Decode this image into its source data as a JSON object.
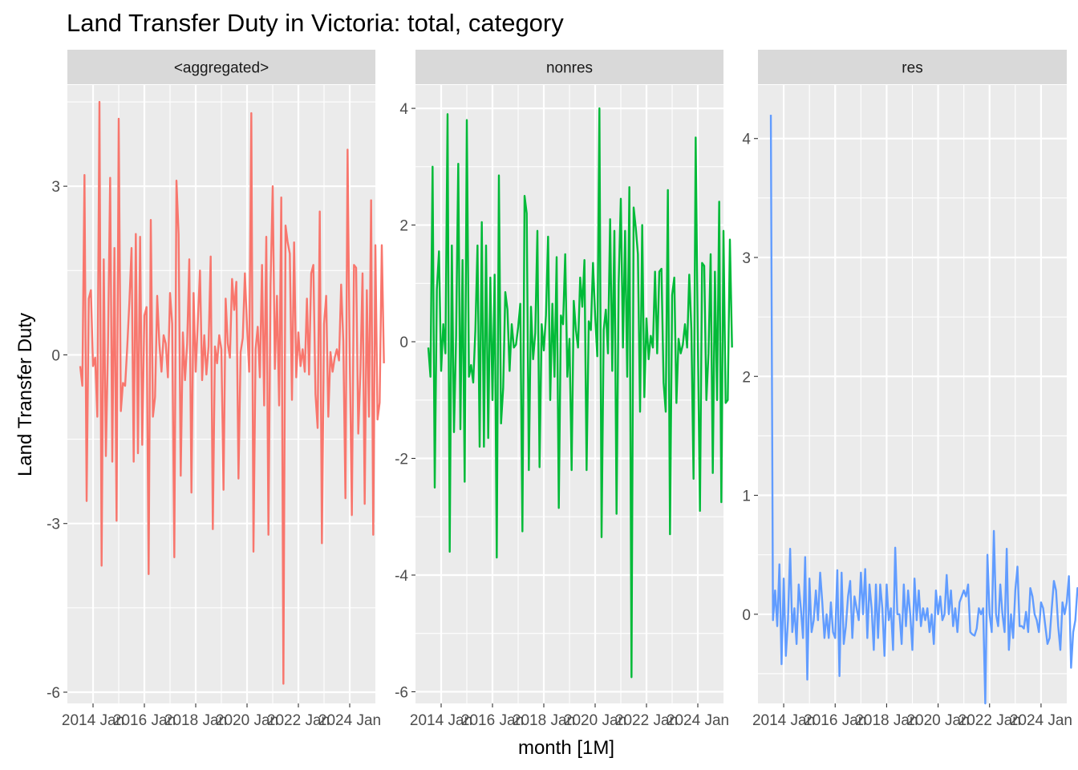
{
  "title": "Land Transfer Duty in Victoria: total, category",
  "xlabel": "month [1M]",
  "ylabel": "Land Transfer Duty",
  "chart_data": {
    "type": "line",
    "title": "Land Transfer Duty in Victoria: total, category",
    "xlabel": "month [1M]",
    "ylabel": "Land Transfer Duty",
    "grid": true,
    "legend": "none",
    "x_start": "2013 Jul",
    "x_frequency": "monthly",
    "x_ticks": [
      "2014 Jan",
      "2016 Jan",
      "2018 Jan",
      "2020 Jan",
      "2022 Jan",
      "2024 Jan"
    ],
    "facets": [
      {
        "name": "<aggregated>",
        "color": "#F8766D",
        "xlim": [
          "2013 Jan",
          "2025 Jan"
        ],
        "ylim": [
          -6.2,
          4.8
        ],
        "yticks": [
          -6,
          -3,
          0,
          3
        ],
        "yticklabels": [
          "-6",
          "-3",
          "0",
          "3"
        ],
        "values": [
          -0.2,
          -0.55,
          3.2,
          -2.6,
          1.0,
          1.15,
          -0.2,
          -0.05,
          -1.1,
          4.5,
          -3.75,
          1.7,
          -1.8,
          0.2,
          3.15,
          -1.9,
          1.9,
          -2.95,
          4.2,
          -1.0,
          -0.5,
          -0.55,
          0.15,
          0.95,
          1.9,
          -1.9,
          2.15,
          -1.75,
          2.1,
          -1.6,
          0.7,
          0.85,
          -3.9,
          2.4,
          -1.1,
          -0.75,
          1.05,
          0.2,
          -0.3,
          0.35,
          0.2,
          -0.4,
          1.1,
          0.55,
          -3.6,
          3.1,
          2.15,
          -2.15,
          0.4,
          -0.45,
          0.2,
          1.7,
          -2.45,
          1.1,
          -0.3,
          0.6,
          1.5,
          -0.45,
          0.35,
          -0.35,
          0.15,
          1.75,
          -3.1,
          0.15,
          -0.15,
          0.35,
          0.1,
          -2.4,
          1.0,
          0.2,
          -0.05,
          1.35,
          0.8,
          1.3,
          -2.2,
          0.05,
          0.3,
          1.45,
          0.5,
          -0.3,
          4.3,
          -3.5,
          0.1,
          0.5,
          -0.4,
          1.6,
          -0.9,
          2.1,
          -3.2,
          1.25,
          3.0,
          -0.25,
          1.05,
          -0.9,
          2.8,
          -5.85,
          2.3,
          2.0,
          1.8,
          -0.8,
          2.0,
          -0.4,
          0.4,
          -0.2,
          0.1,
          -0.3,
          1.0,
          -0.35,
          1.45,
          1.6,
          -0.7,
          -1.3,
          2.55,
          -3.35,
          0.55,
          1.05,
          -1.1,
          0.05,
          -0.3,
          -0.05,
          0.1,
          -0.1,
          1.25,
          0.25,
          -2.55,
          3.65,
          0.0,
          -2.85,
          1.6,
          1.55,
          -1.4,
          -0.3,
          1.45,
          -2.65,
          1.15,
          -1.1,
          2.75,
          -3.2,
          1.95,
          -1.15,
          -0.85,
          1.95,
          -0.15
        ]
      },
      {
        "name": "nonres",
        "color": "#00BA38",
        "xlim": [
          "2013 Jan",
          "2025 Jan"
        ],
        "ylim": [
          -6.2,
          4.4
        ],
        "yticks": [
          -6,
          -4,
          -2,
          0,
          2,
          4
        ],
        "yticklabels": [
          "-6",
          "-4",
          "-2",
          "0",
          "2",
          "4"
        ],
        "values": [
          -0.1,
          -0.6,
          3.0,
          -2.5,
          0.9,
          1.55,
          -0.5,
          0.3,
          -0.2,
          3.9,
          -3.6,
          1.65,
          -1.55,
          0.1,
          3.05,
          -1.5,
          1.4,
          -2.4,
          3.8,
          -0.6,
          -0.4,
          -0.7,
          0.2,
          1.65,
          -1.8,
          2.05,
          -1.8,
          1.65,
          -1.65,
          1.1,
          -1.0,
          1.15,
          -3.7,
          2.85,
          -1.4,
          -0.8,
          0.85,
          0.55,
          -0.5,
          0.3,
          -0.1,
          -0.05,
          0.25,
          0.65,
          -3.25,
          2.5,
          2.2,
          -2.2,
          0.6,
          -0.3,
          0.15,
          1.9,
          -2.15,
          0.3,
          -0.15,
          0.45,
          1.8,
          -1.0,
          0.65,
          -0.6,
          1.45,
          -2.85,
          0.45,
          0.3,
          1.5,
          -0.6,
          0.05,
          -2.2,
          0.7,
          0.2,
          -0.1,
          1.1,
          0.6,
          1.4,
          -2.2,
          0.35,
          0.2,
          1.35,
          0.45,
          -0.25,
          4.0,
          -3.35,
          0.2,
          0.55,
          -0.2,
          2.1,
          -0.5,
          1.9,
          -2.95,
          1.0,
          2.45,
          -0.1,
          1.9,
          -0.6,
          2.65,
          -5.75,
          2.3,
          1.95,
          1.5,
          -1.2,
          2.0,
          -0.95,
          0.4,
          -0.3,
          0.1,
          -0.1,
          1.2,
          -0.2,
          1.2,
          1.25,
          -0.7,
          -1.2,
          2.6,
          -3.3,
          0.8,
          1.1,
          -1.05,
          0.05,
          -0.2,
          -0.05,
          0.3,
          -0.1,
          1.15,
          0.2,
          -2.35,
          3.5,
          0.05,
          -2.9,
          1.35,
          1.3,
          -1.0,
          -0.2,
          1.5,
          -2.25,
          1.2,
          -1.0,
          2.4,
          -2.75,
          1.9,
          -1.05,
          -1.0,
          1.75,
          -0.1
        ]
      },
      {
        "name": "res",
        "color": "#619CFF",
        "xlim": [
          "2013 Jan",
          "2025 Jan"
        ],
        "ylim": [
          -0.75,
          4.45
        ],
        "yticks": [
          0,
          1,
          2,
          3,
          4
        ],
        "yticklabels": [
          "0",
          "1",
          "2",
          "3",
          "4"
        ],
        "values": [
          4.2,
          -0.05,
          0.2,
          -0.1,
          0.42,
          -0.42,
          0.3,
          -0.35,
          -0.05,
          0.55,
          -0.15,
          0.05,
          -0.25,
          0.25,
          0.05,
          -0.2,
          0.48,
          -0.55,
          0.3,
          -0.15,
          -0.05,
          0.2,
          -0.05,
          0.35,
          0.1,
          -0.2,
          0.0,
          -0.2,
          0.1,
          -0.15,
          -0.2,
          0.37,
          -0.52,
          0.35,
          -0.25,
          -0.1,
          0.15,
          0.28,
          -0.2,
          0.15,
          0.05,
          -0.05,
          0.35,
          0.0,
          0.38,
          -0.2,
          0.25,
          0.05,
          -0.3,
          0.25,
          -0.2,
          0.25,
          0.05,
          -0.35,
          0.25,
          -0.05,
          0.05,
          -0.3,
          0.56,
          0.0,
          0.0,
          -0.25,
          0.25,
          -0.1,
          0.2,
          0.0,
          -0.3,
          0.3,
          -0.05,
          0.2,
          -0.1,
          0.05,
          -0.05,
          0.05,
          -0.15,
          0.0,
          -0.25,
          0.2,
          0.0,
          0.15,
          -0.05,
          0.0,
          0.33,
          0.0,
          0.2,
          -0.1,
          0.05,
          -0.15,
          0.1,
          0.15,
          0.2,
          0.15,
          0.25,
          -0.15,
          -0.17,
          -0.18,
          -0.12,
          0.05,
          0.0,
          0.05,
          -0.75,
          0.5,
          0.0,
          -0.15,
          0.7,
          0.0,
          -0.1,
          0.25,
          0.0,
          -0.15,
          0.55,
          -0.3,
          0.0,
          -0.2,
          0.2,
          0.4,
          -0.1,
          -0.1,
          -0.12,
          0.02,
          -0.15,
          0.22,
          0.15,
          0.0,
          -0.05,
          -0.15,
          0.1,
          0.05,
          -0.1,
          -0.25,
          -0.2,
          0.05,
          0.28,
          0.2,
          -0.1,
          -0.3,
          0.1,
          0.0,
          0.1,
          0.32,
          -0.45,
          -0.15,
          -0.05,
          0.22,
          0.21,
          -0.05
        ]
      }
    ]
  }
}
